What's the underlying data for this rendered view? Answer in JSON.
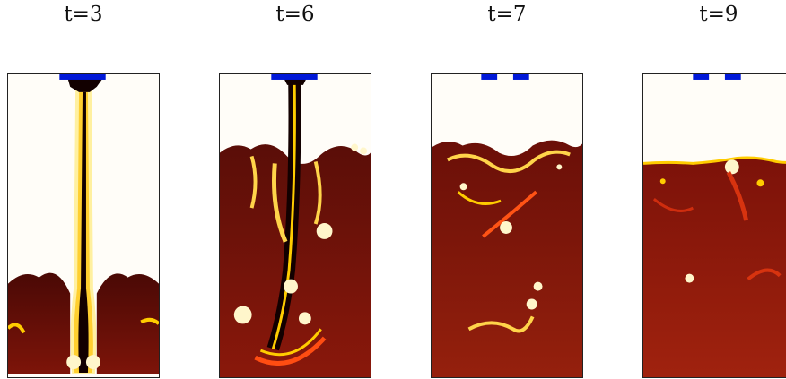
{
  "figure": {
    "panels": [
      {
        "label": "t=3"
      },
      {
        "label": "t=6"
      },
      {
        "label": "t=7"
      },
      {
        "label": "t=9"
      }
    ],
    "colors": {
      "background": "#fffdf8",
      "dark_fluid": "#5a0d08",
      "mid_fluid": "#8f1a0b",
      "hot_edge": "#ffcc00",
      "jet_core": "#120000",
      "inlet": "#0018d8"
    }
  }
}
